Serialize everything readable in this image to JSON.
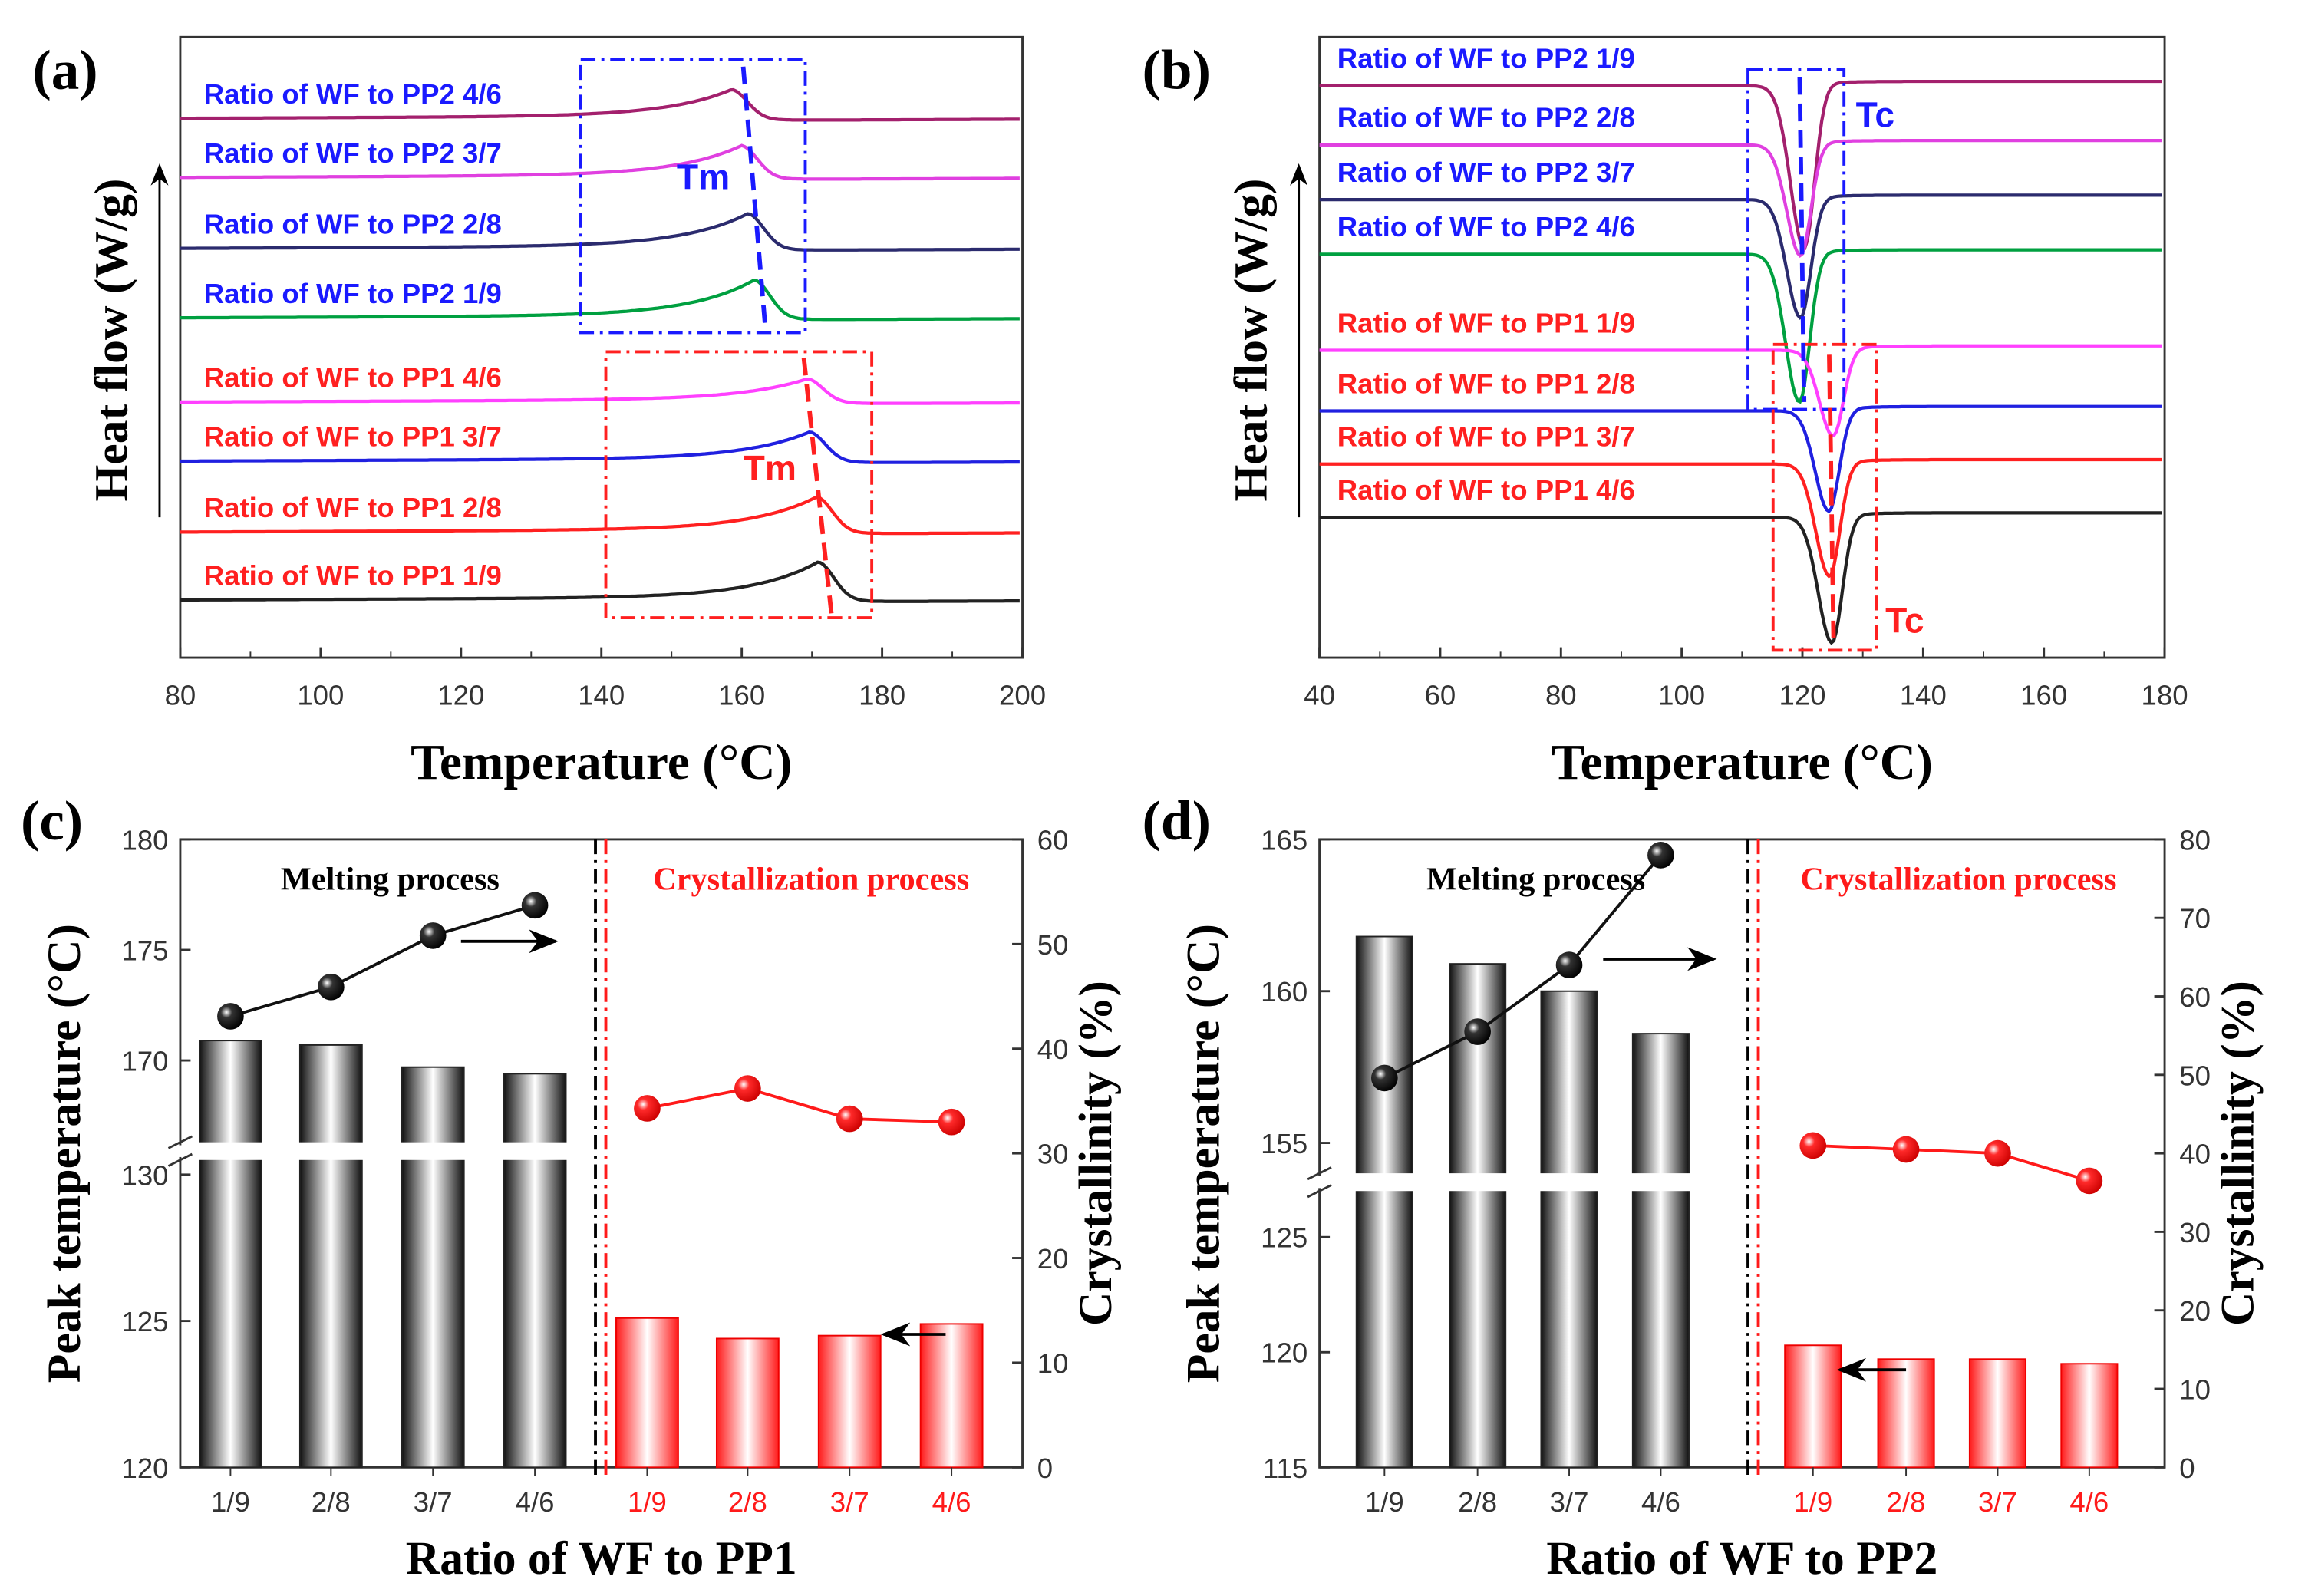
{
  "chart_data": [
    {
      "panel": "(a)",
      "type": "line",
      "title": "",
      "xlabel": "Temperature (°C)",
      "ylabel": "Heat flow (W/g)",
      "xlim": [
        80,
        200
      ],
      "xticks": [
        "80",
        "100",
        "120",
        "140",
        "160",
        "180",
        "200"
      ],
      "annotations": [
        "Tm",
        "Tm"
      ],
      "series": [
        {
          "name": "Ratio of WF to PP2  4/6",
          "peak_temperature": 158.6,
          "color": "#a3206d",
          "label_color": "#1a1aff"
        },
        {
          "name": "Ratio of WF to PP2  3/7",
          "peak_temperature": 160.0,
          "color": "#e040e0",
          "label_color": "#1a1aff"
        },
        {
          "name": "Ratio of WF to PP2  2/8",
          "peak_temperature": 160.9,
          "color": "#2b2b6e",
          "label_color": "#1a1aff"
        },
        {
          "name": "Ratio of WF to PP2  1/9",
          "peak_temperature": 161.8,
          "color": "#00a040",
          "label_color": "#1a1aff"
        },
        {
          "name": "Ratio of WF to PP1  4/6",
          "peak_temperature": 169.4,
          "color": "#ff40ff",
          "label_color": "#ff2020"
        },
        {
          "name": "Ratio of WF to PP1  3/7",
          "peak_temperature": 169.7,
          "color": "#2020e0",
          "label_color": "#ff2020"
        },
        {
          "name": "Ratio of WF to PP1  2/8",
          "peak_temperature": 170.7,
          "color": "#ff2020",
          "label_color": "#ff2020"
        },
        {
          "name": "Ratio of WF to PP1  1/9",
          "peak_temperature": 170.9,
          "color": "#222222",
          "label_color": "#ff2020"
        }
      ]
    },
    {
      "panel": "(b)",
      "type": "line",
      "title": "",
      "xlabel": "Temperature (°C)",
      "ylabel": "Heat flow (W/g)",
      "xlim": [
        40,
        180
      ],
      "xticks": [
        "40",
        "60",
        "80",
        "100",
        "120",
        "140",
        "160",
        "180"
      ],
      "annotations": [
        "Tc",
        "Tc"
      ],
      "series": [
        {
          "name": "Ratio of WF to PP2  1/9",
          "peak_temperature": 120.3,
          "color": "#a3206d",
          "label_color": "#1a1aff"
        },
        {
          "name": "Ratio of WF to PP2  2/8",
          "peak_temperature": 119.7,
          "color": "#e040e0",
          "label_color": "#1a1aff"
        },
        {
          "name": "Ratio of WF to PP2  3/7",
          "peak_temperature": 119.7,
          "color": "#2b2b6e",
          "label_color": "#1a1aff"
        },
        {
          "name": "Ratio of WF to PP2  4/6",
          "peak_temperature": 119.5,
          "color": "#00a040",
          "label_color": "#1a1aff"
        },
        {
          "name": "Ratio of WF to PP1  1/9",
          "peak_temperature": 125.1,
          "color": "#ff40ff",
          "label_color": "#ff2020"
        },
        {
          "name": "Ratio of WF to PP1  2/8",
          "peak_temperature": 124.4,
          "color": "#2020e0",
          "label_color": "#ff2020"
        },
        {
          "name": "Ratio of WF to PP1  3/7",
          "peak_temperature": 124.5,
          "color": "#ff2020",
          "label_color": "#ff2020"
        },
        {
          "name": "Ratio of WF to PP1  4/6",
          "peak_temperature": 124.9,
          "color": "#222222",
          "label_color": "#ff2020"
        }
      ]
    },
    {
      "panel": "(c)",
      "type": "bar",
      "xlabel": "Ratio of WF to PP1",
      "ylabel": "Peak temperature (°C)",
      "y2label": "Crystallinity (%)",
      "categories": [
        "1/9",
        "2/8",
        "3/7",
        "4/6"
      ],
      "section_labels": [
        "Melting process",
        "Crystallization process"
      ],
      "ylim_lower": [
        120,
        130.5
      ],
      "ylim_upper": [
        166.3,
        180
      ],
      "yticks": [
        "120",
        "125",
        "130",
        "170",
        "175",
        "180"
      ],
      "y2lim": [
        0,
        60
      ],
      "y2ticks": [
        "0",
        "10",
        "20",
        "30",
        "40",
        "50",
        "60"
      ],
      "series": [
        {
          "name": "Melting peak temperature",
          "kind": "bar",
          "values": [
            170.9,
            170.7,
            169.7,
            169.4
          ]
        },
        {
          "name": "Crystallization peak temperature",
          "kind": "bar",
          "values": [
            125.1,
            124.4,
            124.5,
            124.9
          ]
        },
        {
          "name": "Melting crystallinity",
          "kind": "line",
          "values": [
            43.1,
            45.9,
            50.8,
            53.7
          ]
        },
        {
          "name": "Crystallization crystallinity",
          "kind": "line",
          "values": [
            34.3,
            36.2,
            33.3,
            33.0
          ]
        }
      ]
    },
    {
      "panel": "(d)",
      "type": "bar",
      "xlabel": "Ratio of WF to PP2",
      "ylabel": "Peak temperature (°C)",
      "y2label": "Crystallinity (%)",
      "categories": [
        "1/9",
        "2/8",
        "3/7",
        "4/6"
      ],
      "section_labels": [
        "Melting process",
        "Crystallization process"
      ],
      "ylim_lower": [
        115,
        127
      ],
      "ylim_upper": [
        154,
        165
      ],
      "yticks": [
        "115",
        "120",
        "125",
        "155",
        "160",
        "165"
      ],
      "y2lim": [
        0,
        80
      ],
      "y2ticks": [
        "0",
        "10",
        "20",
        "30",
        "40",
        "50",
        "60",
        "70",
        "80"
      ],
      "series": [
        {
          "name": "Melting peak temperature",
          "kind": "bar",
          "values": [
            161.8,
            160.9,
            160.0,
            158.6
          ]
        },
        {
          "name": "Crystallization peak temperature",
          "kind": "bar",
          "values": [
            120.3,
            119.7,
            119.7,
            119.5
          ]
        },
        {
          "name": "Melting crystallinity",
          "kind": "line",
          "values": [
            49.6,
            55.5,
            64.0,
            78.0
          ]
        },
        {
          "name": "Crystallization crystallinity",
          "kind": "line",
          "values": [
            41.0,
            40.5,
            40.0,
            36.5
          ]
        }
      ]
    }
  ],
  "colors": {
    "black": "#111111",
    "red": "#ff1a1a",
    "blue": "#1a1aff"
  }
}
